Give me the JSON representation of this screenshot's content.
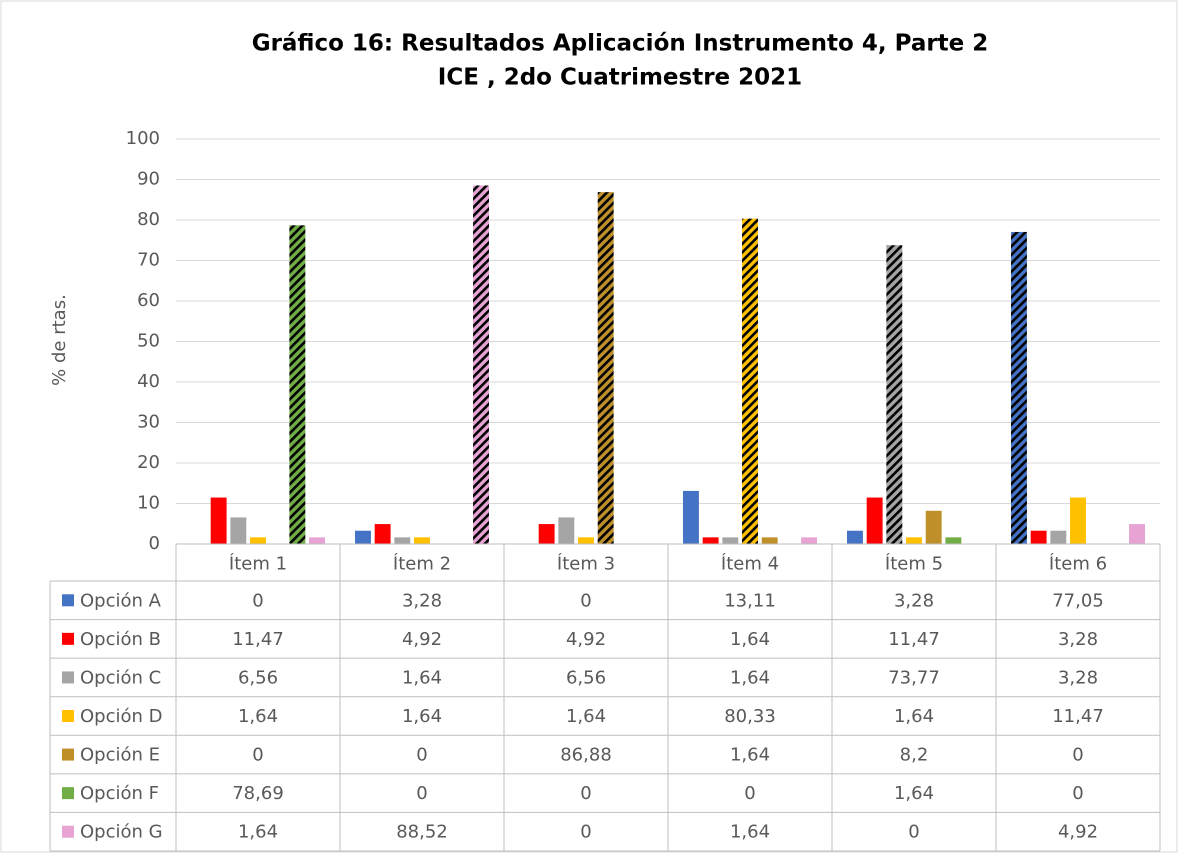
{
  "chart_data": {
    "type": "bar",
    "title": [
      "Gráfico 16: Resultados Aplicación Instrumento 4, Parte 2",
      "ICE , 2do Cuatrimestre 2021"
    ],
    "y_label": "% de rtas.",
    "categories": [
      "Ítem 1",
      "Ítem 2",
      "Ítem 3",
      "Ítem 4",
      "Ítem 5",
      "Ítem 6"
    ],
    "ylim": [
      0,
      100
    ],
    "yticks": [
      0,
      10,
      20,
      30,
      40,
      50,
      60,
      70,
      80,
      90,
      100
    ],
    "grid": true,
    "series": [
      {
        "name": "Opción A",
        "color": "#4472c4",
        "values": [
          0,
          3.28,
          0,
          13.11,
          3.28,
          77.05
        ],
        "value_labels": [
          "0",
          "3,28",
          "0",
          "13,11",
          "3,28",
          "77,05"
        ],
        "hatched": [
          false,
          false,
          false,
          false,
          false,
          true
        ]
      },
      {
        "name": "Opción B",
        "color": "#ff0000",
        "values": [
          11.47,
          4.92,
          4.92,
          1.64,
          11.47,
          3.28
        ],
        "value_labels": [
          "11,47",
          "4,92",
          "4,92",
          "1,64",
          "11,47",
          "3,28"
        ],
        "hatched": [
          false,
          false,
          false,
          false,
          false,
          false
        ]
      },
      {
        "name": "Opción C",
        "color": "#a5a5a5",
        "values": [
          6.56,
          1.64,
          6.56,
          1.64,
          73.77,
          3.28
        ],
        "value_labels": [
          "6,56",
          "1,64",
          "6,56",
          "1,64",
          "73,77",
          "3,28"
        ],
        "hatched": [
          false,
          false,
          false,
          false,
          true,
          false
        ]
      },
      {
        "name": "Opción D",
        "color": "#ffc000",
        "values": [
          1.64,
          1.64,
          1.64,
          80.33,
          1.64,
          11.47
        ],
        "value_labels": [
          "1,64",
          "1,64",
          "1,64",
          "80,33",
          "1,64",
          "11,47"
        ],
        "hatched": [
          false,
          false,
          false,
          true,
          false,
          false
        ]
      },
      {
        "name": "Opción E",
        "color": "#bf8f2a",
        "values": [
          0,
          0,
          86.88,
          1.64,
          8.2,
          0
        ],
        "value_labels": [
          "0",
          "0",
          "86,88",
          "1,64",
          "8,2",
          "0"
        ],
        "hatched": [
          false,
          false,
          true,
          false,
          false,
          false
        ]
      },
      {
        "name": "Opción F",
        "color": "#70ad47",
        "values": [
          78.69,
          0,
          0,
          0,
          1.64,
          0
        ],
        "value_labels": [
          "78,69",
          "0",
          "0",
          "0",
          "1,64",
          "0"
        ],
        "hatched": [
          true,
          false,
          false,
          false,
          false,
          false
        ]
      },
      {
        "name": "Opción G",
        "color": "#e6a3d4",
        "values": [
          1.64,
          88.52,
          0,
          1.64,
          0,
          4.92
        ],
        "value_labels": [
          "1,64",
          "88,52",
          "0",
          "1,64",
          "0",
          "4,92"
        ],
        "hatched": [
          false,
          true,
          false,
          false,
          false,
          false
        ]
      }
    ]
  }
}
